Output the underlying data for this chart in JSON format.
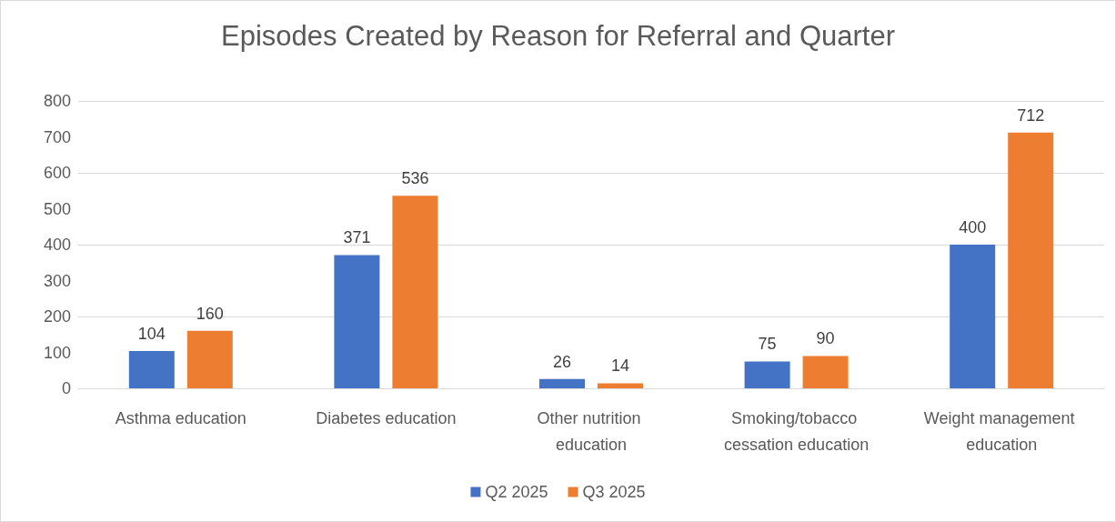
{
  "chart_data": {
    "type": "bar",
    "title": "Episodes Created by Reason for Referral and Quarter",
    "categories": [
      "Asthma education",
      "Diabetes education",
      "Other nutrition education",
      "Smoking/tobacco cessation education",
      "Weight management education"
    ],
    "series": [
      {
        "name": "Q2 2025",
        "color": "#4472c4",
        "values": [
          104,
          371,
          26,
          75,
          400
        ]
      },
      {
        "name": "Q3 2025",
        "color": "#ed7d31",
        "values": [
          160,
          536,
          14,
          90,
          712
        ]
      }
    ],
    "ylim": [
      0,
      800
    ],
    "yticks": [
      0,
      100,
      200,
      300,
      400,
      500,
      600,
      700,
      800
    ],
    "grid": "y",
    "legend": "bottom",
    "data_labels": true
  }
}
